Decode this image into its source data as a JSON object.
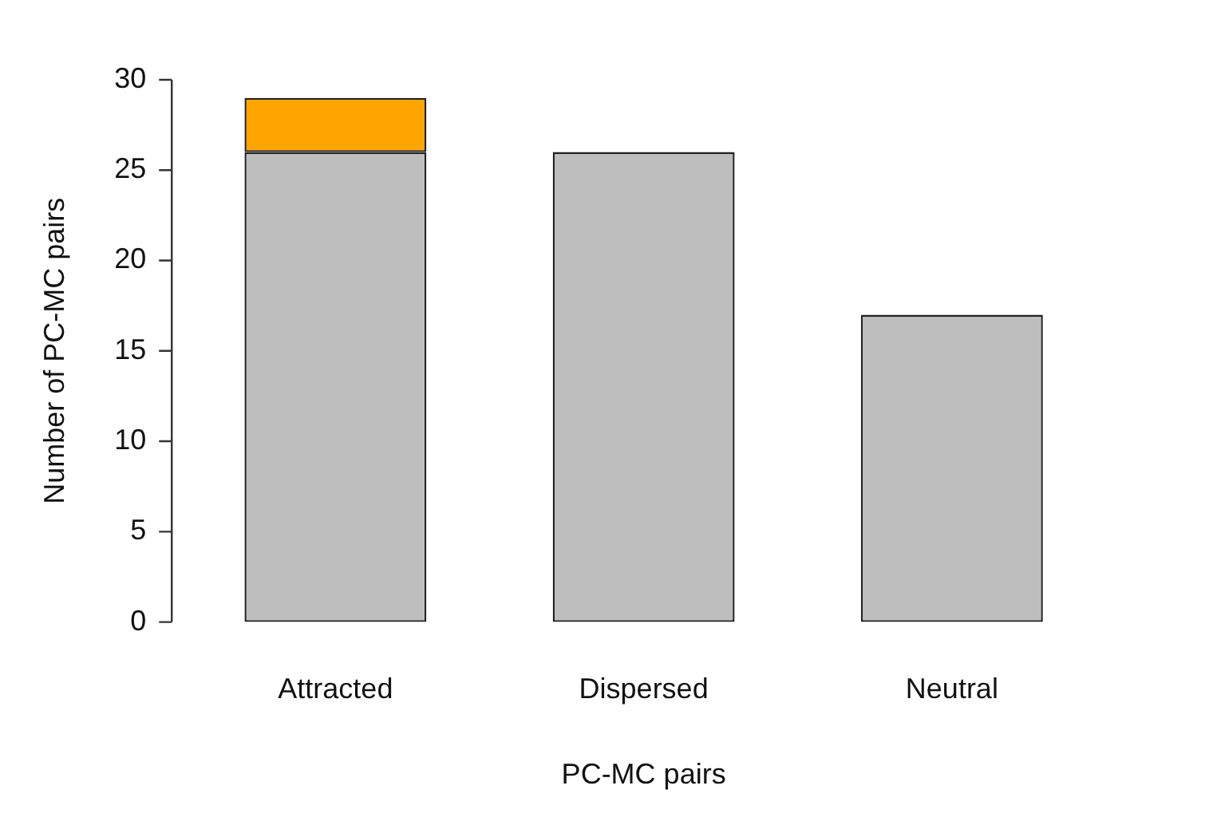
{
  "chart_data": {
    "type": "bar",
    "stacked": true,
    "xlabel": "PC-MC pairs",
    "ylabel": "Number of PC-MC pairs",
    "categories": [
      "Attracted",
      "Dispersed",
      "Neutral"
    ],
    "series": [
      {
        "color": "#bebebe",
        "values": [
          26,
          26,
          17
        ]
      },
      {
        "color": "#ffa500",
        "values": [
          3,
          null,
          null
        ]
      }
    ],
    "ylim": [
      0,
      30
    ],
    "yticks": [
      0,
      5,
      10,
      15,
      20,
      25,
      30
    ],
    "grid": false,
    "legend": false
  }
}
